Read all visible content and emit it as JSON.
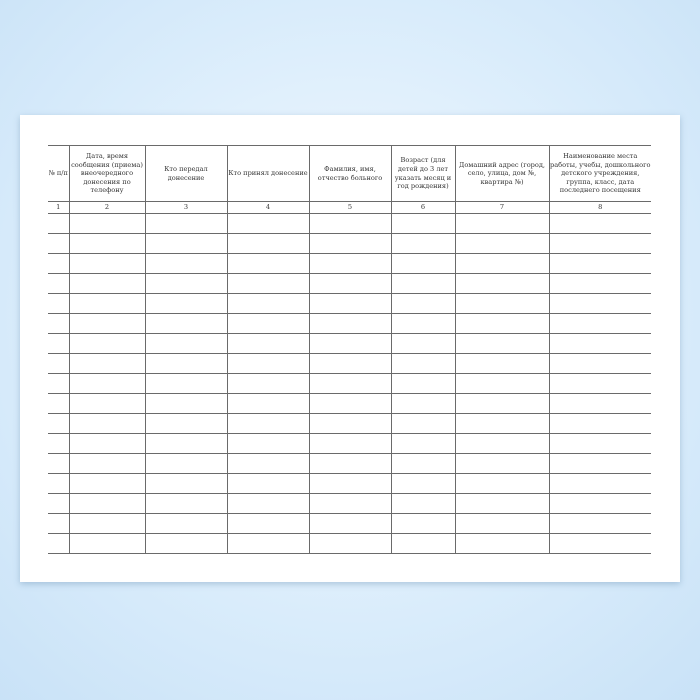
{
  "table": {
    "headers": [
      "№ п/п",
      "Дата, время сообщения (приема) внеочередного донесения по телефону",
      "Кто передал донесение",
      "Кто принял донесение",
      "Фамилия, имя, отчество больного",
      "Возраст (для детей до 3 лет указать месяц и год рождения)",
      "Домашний адрес (город, село, улица, дом №, квартира №)",
      "Наименование места работы, учебы, дошкольного детского учреждения, группа, класс, дата последнего посещения"
    ],
    "column_numbers": [
      "1",
      "2",
      "3",
      "4",
      "5",
      "6",
      "7",
      "8"
    ],
    "empty_rows": 17
  }
}
